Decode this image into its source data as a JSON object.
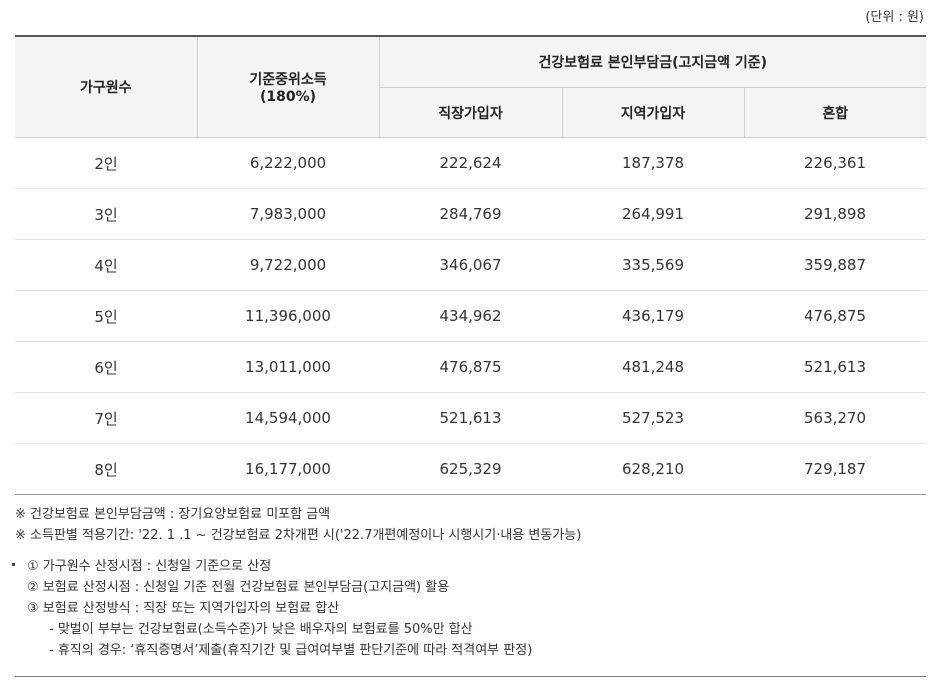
{
  "unit": "(단위 : 원)",
  "headers": {
    "household": "가구원수",
    "income_line1": "기준중위소득",
    "income_line2": "(180%)",
    "premium_group": "건강보험료 본인부담금(고지금액 기준)",
    "employee": "직장가입자",
    "regional": "지역가입자",
    "mixed": "혼합"
  },
  "rows": [
    {
      "household": "2인",
      "income": "6,222,000",
      "employee": "222,624",
      "regional": "187,378",
      "mixed": "226,361"
    },
    {
      "household": "3인",
      "income": "7,983,000",
      "employee": "284,769",
      "regional": "264,991",
      "mixed": "291,898"
    },
    {
      "household": "4인",
      "income": "9,722,000",
      "employee": "346,067",
      "regional": "335,569",
      "mixed": "359,887"
    },
    {
      "household": "5인",
      "income": "11,396,000",
      "employee": "434,962",
      "regional": "436,179",
      "mixed": "476,875"
    },
    {
      "household": "6인",
      "income": "13,011,000",
      "employee": "476,875",
      "regional": "481,248",
      "mixed": "521,613"
    },
    {
      "household": "7인",
      "income": "14,594,000",
      "employee": "521,613",
      "regional": "527,523",
      "mixed": "563,270"
    },
    {
      "household": "8인",
      "income": "16,177,000",
      "employee": "625,329",
      "regional": "628,210",
      "mixed": "729,187"
    }
  ],
  "notes": {
    "note1": "※ 건강보험료 본인부담금액 :  장기요양보험료 미포함 금액",
    "note2": "※ 소득판별 적용기간: '22. 1 .1 ~ 건강보험료 2차개편 시('22.7개편예정이나 시행시기·내용 변동가능)",
    "item1": "① 가구원수 산정시점 : 신청일 기준으로 산정",
    "item2": "② 보험료 산정시점 : 신청일 기준 전월 건강보험료 본인부담금(고지금액) 활용",
    "item3": "③ 보험료 산정방식 : 직장 또는 지역가입자의 보험료 합산",
    "sub1": "- 맞벌이 부부는 건강보험료(소득수준)가 낮은 배우자의 보험료를 50%만 합산",
    "sub2": "- 휴직의 경우: ‘휴직증명서’제출(휴직기간 및 급여여부별 판단기준에 따라 적격여부 판정)"
  }
}
